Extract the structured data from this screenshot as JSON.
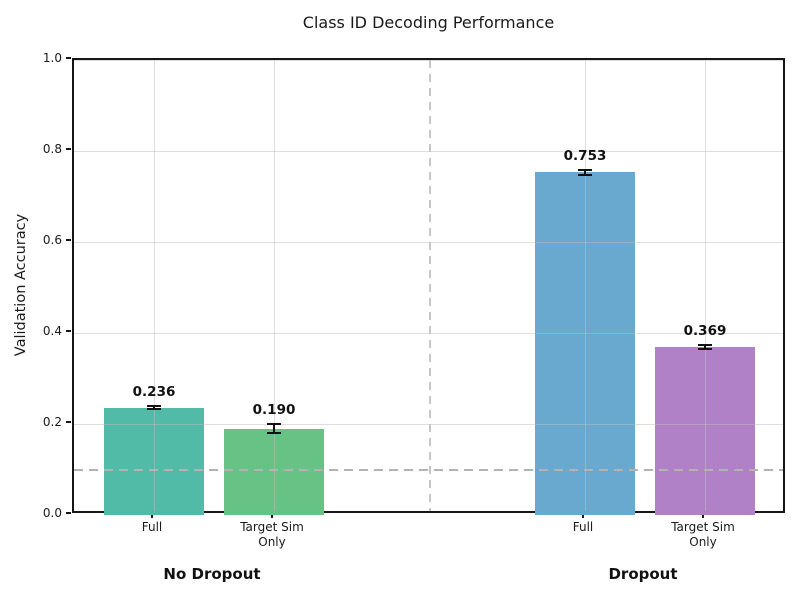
{
  "figure": {
    "title": "Class ID Decoding Performance",
    "ylabel": "Validation Accuracy"
  },
  "chart_data": {
    "type": "bar",
    "title": "Class ID Decoding Performance",
    "xlabel": "",
    "ylabel": "Validation Accuracy",
    "ylim": [
      0.0,
      1.0
    ],
    "yticks": [
      "0.0",
      "0.2",
      "0.4",
      "0.6",
      "0.8",
      "1.0"
    ],
    "grid": true,
    "legend": "none",
    "reference_line": {
      "y": 0.1,
      "style": "dashed",
      "color": "#b3b3b3"
    },
    "group_separator": {
      "style": "dashed",
      "color": "#c6c6c6"
    },
    "groups": [
      {
        "label": "No Dropout",
        "bars": [
          {
            "category": "Full",
            "value": 0.236,
            "value_label": "0.236",
            "error": 0.004,
            "color": "#52bba7"
          },
          {
            "category": "Target Sim\nOnly",
            "value": 0.19,
            "value_label": "0.190",
            "error": 0.01,
            "color": "#66c285"
          }
        ]
      },
      {
        "label": "Dropout",
        "bars": [
          {
            "category": "Full",
            "value": 0.753,
            "value_label": "0.753",
            "error": 0.005,
            "color": "#69a8cf"
          },
          {
            "category": "Target Sim\nOnly",
            "value": 0.369,
            "value_label": "0.369",
            "error": 0.004,
            "color": "#b081c7"
          }
        ]
      }
    ]
  }
}
